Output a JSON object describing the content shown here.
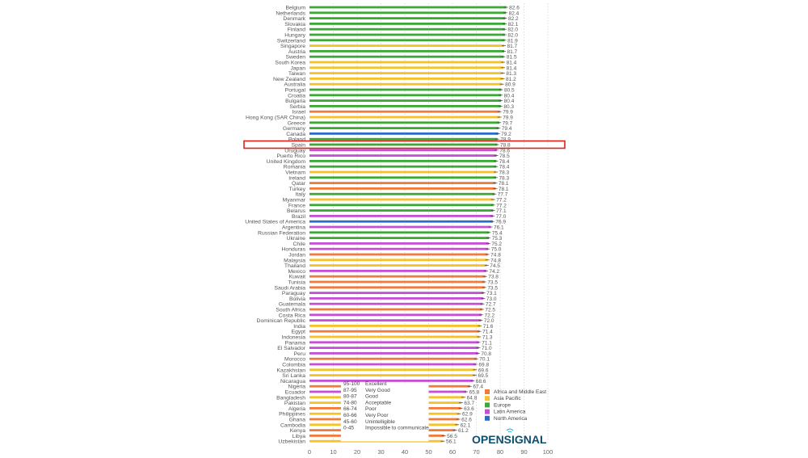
{
  "chart_data": {
    "type": "bar",
    "orientation": "horizontal",
    "xlim": [
      0,
      100
    ],
    "x_ticks": [
      0,
      10,
      20,
      30,
      40,
      50,
      60,
      70,
      80,
      90,
      100
    ],
    "grid": true,
    "highlighted_category": "Spain",
    "region_colors": {
      "Africa and Middle East": "#f07b3a",
      "Asia Pacific": "#f5c227",
      "Europe": "#3aa935",
      "Latin America": "#c64fd6",
      "North America": "#2b6cc4"
    },
    "legend": [
      "Africa and Middle East",
      "Asia Pacific",
      "Europe",
      "Latin America",
      "North America"
    ],
    "legend_position": "bottom-right",
    "quality_scale": [
      {
        "range": "95-100",
        "label": "Excellent"
      },
      {
        "range": "87-95",
        "label": "Very Good"
      },
      {
        "range": "80-87",
        "label": "Good"
      },
      {
        "range": "74-80",
        "label": "Acceptable"
      },
      {
        "range": "66-74",
        "label": "Poor"
      },
      {
        "range": "60-66",
        "label": "Very Poor"
      },
      {
        "range": "45-60",
        "label": "Unintelligible"
      },
      {
        "range": "0-45",
        "label": "Impossible to communicate"
      }
    ],
    "logo": "OPENSIGNAL",
    "rows": [
      [
        "Belgium",
        82.6,
        "Europe"
      ],
      [
        "Netherlands",
        82.4,
        "Europe"
      ],
      [
        "Denmark",
        82.2,
        "Europe"
      ],
      [
        "Slovakia",
        82.1,
        "Europe"
      ],
      [
        "Finland",
        82.0,
        "Europe"
      ],
      [
        "Hungary",
        82.0,
        "Europe"
      ],
      [
        "Switzerland",
        81.9,
        "Europe"
      ],
      [
        "Singapore",
        81.7,
        "Asia Pacific"
      ],
      [
        "Austria",
        81.7,
        "Europe"
      ],
      [
        "Sweden",
        81.5,
        "Europe"
      ],
      [
        "South Korea",
        81.4,
        "Asia Pacific"
      ],
      [
        "Japan",
        81.4,
        "Asia Pacific"
      ],
      [
        "Taiwan",
        81.3,
        "Asia Pacific"
      ],
      [
        "New Zealand",
        81.2,
        "Asia Pacific"
      ],
      [
        "Australia",
        80.9,
        "Asia Pacific"
      ],
      [
        "Portugal",
        80.5,
        "Europe"
      ],
      [
        "Croatia",
        80.4,
        "Europe"
      ],
      [
        "Bulgaria",
        80.4,
        "Europe"
      ],
      [
        "Serbia",
        80.3,
        "Europe"
      ],
      [
        "Israel",
        79.9,
        "Africa and Middle East"
      ],
      [
        "Hong Kong (SAR China)",
        79.9,
        "Asia Pacific"
      ],
      [
        "Greece",
        79.7,
        "Europe"
      ],
      [
        "Germany",
        79.4,
        "Europe"
      ],
      [
        "Canada",
        79.2,
        "North America"
      ],
      [
        "Poland",
        78.9,
        "Europe"
      ],
      [
        "Spain",
        78.8,
        "Europe"
      ],
      [
        "Uruguay",
        78.6,
        "Latin America"
      ],
      [
        "Puerto Rico",
        78.5,
        "Latin America"
      ],
      [
        "United Kingdom",
        78.4,
        "Europe"
      ],
      [
        "Romania",
        78.4,
        "Europe"
      ],
      [
        "Vietnam",
        78.3,
        "Asia Pacific"
      ],
      [
        "Ireland",
        78.3,
        "Europe"
      ],
      [
        "Qatar",
        78.1,
        "Africa and Middle East"
      ],
      [
        "Turkey",
        78.1,
        "Africa and Middle East"
      ],
      [
        "Italy",
        77.7,
        "Europe"
      ],
      [
        "Myanmar",
        77.2,
        "Asia Pacific"
      ],
      [
        "France",
        77.2,
        "Europe"
      ],
      [
        "Belarus",
        77.1,
        "Europe"
      ],
      [
        "Brazil",
        77.0,
        "Latin America"
      ],
      [
        "United States of America",
        76.9,
        "North America"
      ],
      [
        "Argentina",
        76.1,
        "Latin America"
      ],
      [
        "Russian Federation",
        75.4,
        "Europe"
      ],
      [
        "Ukraine",
        75.3,
        "Europe"
      ],
      [
        "Chile",
        75.2,
        "Latin America"
      ],
      [
        "Honduras",
        75.0,
        "Latin America"
      ],
      [
        "Jordan",
        74.8,
        "Africa and Middle East"
      ],
      [
        "Malaysia",
        74.8,
        "Asia Pacific"
      ],
      [
        "Thailand",
        74.5,
        "Asia Pacific"
      ],
      [
        "Mexico",
        74.2,
        "Latin America"
      ],
      [
        "Kuwait",
        73.8,
        "Africa and Middle East"
      ],
      [
        "Tunisia",
        73.5,
        "Africa and Middle East"
      ],
      [
        "Saudi Arabia",
        73.5,
        "Africa and Middle East"
      ],
      [
        "Paraguay",
        73.1,
        "Latin America"
      ],
      [
        "Bolivia",
        73.0,
        "Latin America"
      ],
      [
        "Guatemala",
        72.7,
        "Latin America"
      ],
      [
        "South Africa",
        72.5,
        "Africa and Middle East"
      ],
      [
        "Costa Rica",
        72.2,
        "Latin America"
      ],
      [
        "Dominican Republic",
        72.0,
        "Latin America"
      ],
      [
        "India",
        71.6,
        "Asia Pacific"
      ],
      [
        "Egypt",
        71.4,
        "Africa and Middle East"
      ],
      [
        "Indonesia",
        71.3,
        "Asia Pacific"
      ],
      [
        "Panama",
        71.1,
        "Latin America"
      ],
      [
        "El Salvador",
        71.0,
        "Latin America"
      ],
      [
        "Peru",
        70.8,
        "Latin America"
      ],
      [
        "Morocco",
        70.1,
        "Africa and Middle East"
      ],
      [
        "Colombia",
        69.8,
        "Latin America"
      ],
      [
        "Kazakhstan",
        69.6,
        "Asia Pacific"
      ],
      [
        "Sri Lanka",
        69.5,
        "Asia Pacific"
      ],
      [
        "Nicaragua",
        68.6,
        "Latin America"
      ],
      [
        "Nigeria",
        67.4,
        "Africa and Middle East"
      ],
      [
        "Ecuador",
        65.8,
        "Latin America"
      ],
      [
        "Bangladesh",
        64.8,
        "Asia Pacific"
      ],
      [
        "Pakistan",
        63.7,
        "Asia Pacific"
      ],
      [
        "Algeria",
        63.6,
        "Africa and Middle East"
      ],
      [
        "Philippines",
        62.9,
        "Asia Pacific"
      ],
      [
        "Ghana",
        62.6,
        "Africa and Middle East"
      ],
      [
        "Cambodia",
        62.1,
        "Asia Pacific"
      ],
      [
        "Kenya",
        61.2,
        "Africa and Middle East"
      ],
      [
        "Libya",
        56.5,
        "Africa and Middle East"
      ],
      [
        "Uzbekistan",
        56.1,
        "Asia Pacific"
      ]
    ]
  }
}
